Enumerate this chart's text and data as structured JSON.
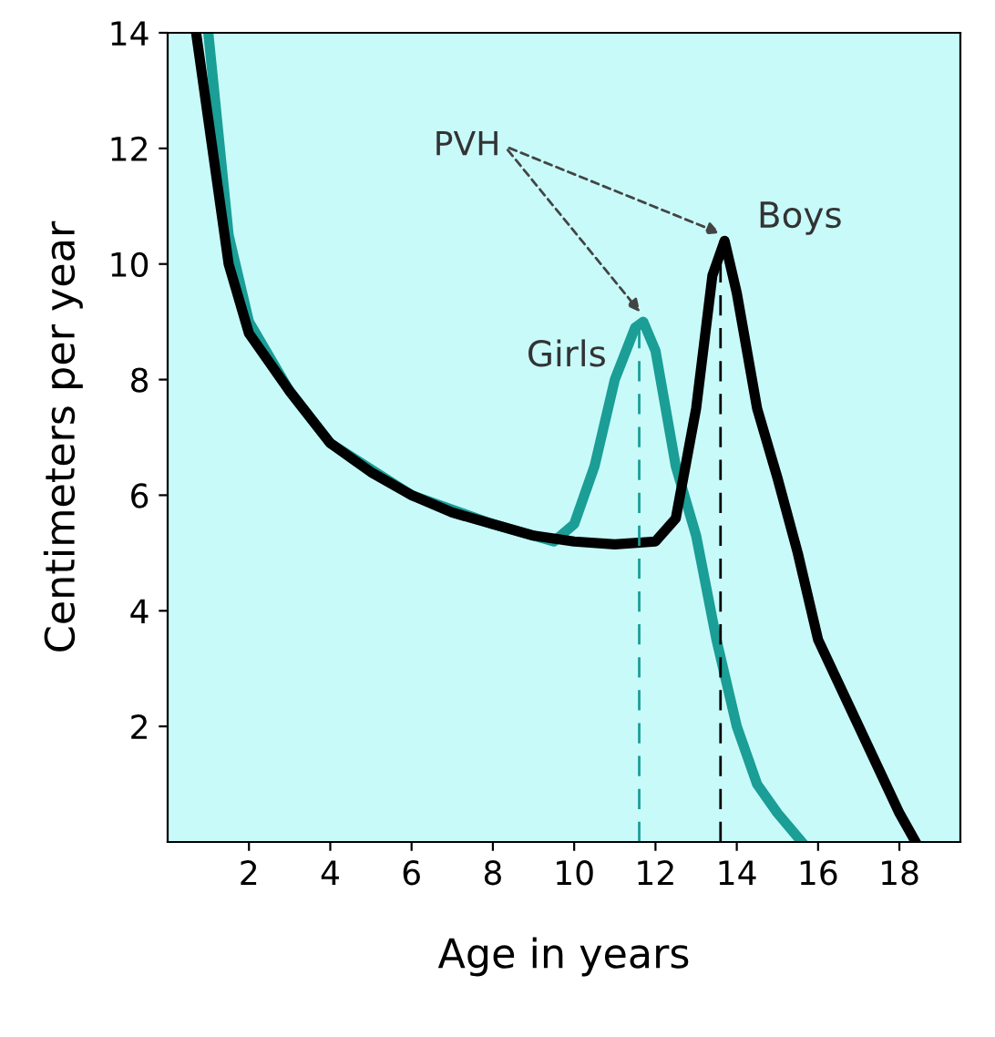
{
  "chart_data": {
    "type": "line",
    "xlabel": "Age in years",
    "ylabel": "Centimeters per year",
    "xlim": [
      0,
      19.5
    ],
    "ylim": [
      0,
      14
    ],
    "xticks": [
      2,
      4,
      6,
      8,
      10,
      12,
      14,
      16,
      18
    ],
    "yticks": [
      2,
      4,
      6,
      8,
      10,
      12,
      14
    ],
    "grid": false,
    "legend": false,
    "line_style": "solid",
    "marker": "none",
    "annotations": [
      {
        "text": "PVH",
        "x": 13.7,
        "y": 10.4
      }
    ],
    "ref_lines": [
      {
        "axis": "x",
        "value": 11.6,
        "label": null,
        "color": "#1a9e96",
        "line_style": "dashed"
      },
      {
        "axis": "x",
        "value": 13.6,
        "label": null,
        "color": "#000000",
        "line_style": "dashed"
      }
    ],
    "series": [
      {
        "name": "Girls",
        "color": "#1a9e96",
        "x": [
          1,
          1.5,
          2,
          3,
          4,
          6,
          8,
          9.5,
          10,
          10.5,
          11,
          11.5,
          11.7,
          12,
          12.5,
          13,
          13.5,
          14,
          14.5,
          15,
          15.6
        ],
        "values": [
          14,
          10.5,
          9.0,
          7.8,
          6.9,
          6.0,
          5.5,
          5.2,
          5.5,
          6.5,
          8,
          8.9,
          9.0,
          8.5,
          6.5,
          5.3,
          3.5,
          2,
          1,
          0.5,
          0
        ]
      },
      {
        "name": "Boys",
        "color": "#000000",
        "x": [
          0.7,
          1,
          1.5,
          2,
          3,
          4,
          5,
          6,
          7,
          8,
          9,
          10,
          11,
          12,
          12.5,
          13,
          13.4,
          13.7,
          14,
          14.5,
          15,
          15.5,
          16,
          17,
          18,
          18.4
        ],
        "values": [
          14,
          12.5,
          10,
          8.8,
          7.8,
          6.9,
          6.4,
          6.0,
          5.7,
          5.5,
          5.3,
          5.2,
          5.15,
          5.2,
          5.6,
          7.5,
          9.8,
          10.4,
          9.5,
          7.5,
          6.3,
          5,
          3.5,
          2,
          0.5,
          0
        ]
      }
    ]
  }
}
